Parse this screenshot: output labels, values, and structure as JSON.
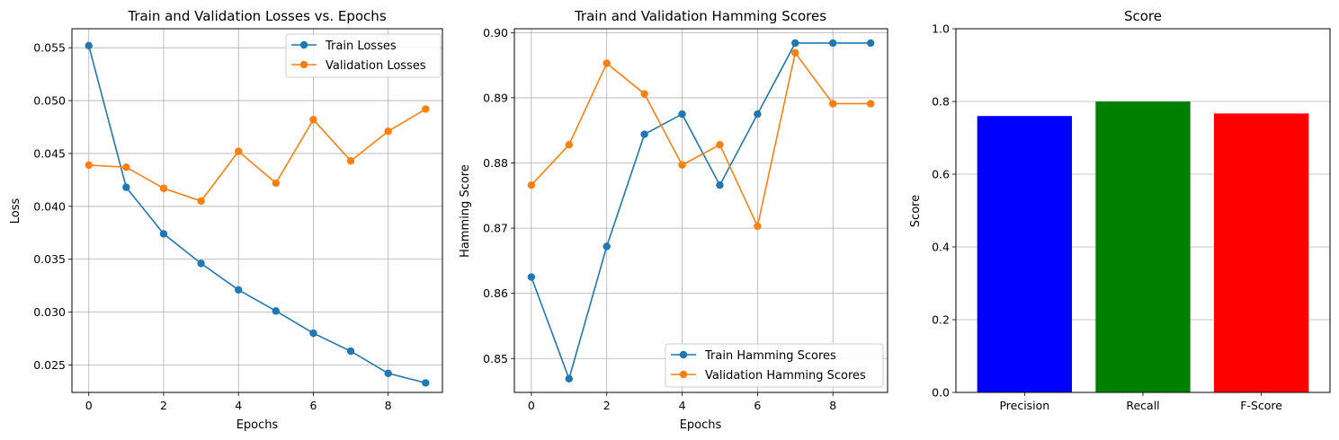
{
  "chart_data": [
    {
      "type": "line",
      "title": "Train and Validation Losses vs. Epochs",
      "xlabel": "Epochs",
      "ylabel": "Loss",
      "xlim": [
        -0.45,
        9.45
      ],
      "ylim": [
        0.0224,
        0.0568
      ],
      "xticks": [
        0,
        2,
        4,
        6,
        8
      ],
      "yticks": [
        0.025,
        0.03,
        0.035,
        0.04,
        0.045,
        0.05,
        0.055
      ],
      "ytick_decimals": 3,
      "grid": true,
      "legend_position": "top-right",
      "x": [
        0,
        1,
        2,
        3,
        4,
        5,
        6,
        7,
        8,
        9
      ],
      "series": [
        {
          "name": "Train Losses",
          "color": "#1f77b4",
          "values": [
            0.0552,
            0.0418,
            0.0374,
            0.0346,
            0.0321,
            0.0301,
            0.028,
            0.0263,
            0.0242,
            0.0233
          ]
        },
        {
          "name": "Validation Losses",
          "color": "#ff7f0e",
          "values": [
            0.0439,
            0.0437,
            0.0417,
            0.0405,
            0.0452,
            0.0422,
            0.0482,
            0.0443,
            0.0471,
            0.0492
          ]
        }
      ]
    },
    {
      "type": "line",
      "title": "Train and Validation Hamming Scores",
      "xlabel": "Epochs",
      "ylabel": "Hamming Score",
      "xlim": [
        -0.45,
        9.45
      ],
      "ylim": [
        0.8448,
        0.9006
      ],
      "xticks": [
        0,
        2,
        4,
        6,
        8
      ],
      "yticks": [
        0.85,
        0.86,
        0.87,
        0.88,
        0.89,
        0.9
      ],
      "ytick_decimals": 2,
      "grid": true,
      "legend_position": "bottom-right",
      "x": [
        0,
        1,
        2,
        3,
        4,
        5,
        6,
        7,
        8,
        9
      ],
      "series": [
        {
          "name": "Train Hamming Scores",
          "color": "#1f77b4",
          "values": [
            0.8625,
            0.8469,
            0.8672,
            0.8844,
            0.8875,
            0.8766,
            0.8875,
            0.8984,
            0.8984,
            0.8984
          ]
        },
        {
          "name": "Validation Hamming Scores",
          "color": "#ff7f0e",
          "values": [
            0.8766,
            0.8828,
            0.8953,
            0.8906,
            0.8797,
            0.8828,
            0.8703,
            0.8969,
            0.8891,
            0.8891
          ]
        }
      ]
    },
    {
      "type": "bar",
      "title": "Score",
      "xlabel": "",
      "ylabel": "Score",
      "ylim": [
        0,
        1
      ],
      "yticks": [
        0.0,
        0.2,
        0.4,
        0.6,
        0.8,
        1.0
      ],
      "ytick_decimals": 1,
      "grid": true,
      "grid_axis": "y",
      "categories": [
        "Precision",
        "Recall",
        "F-Score"
      ],
      "values": [
        0.76,
        0.8,
        0.767
      ],
      "colors": [
        "#0000ff",
        "#008000",
        "#ff0000"
      ]
    }
  ]
}
